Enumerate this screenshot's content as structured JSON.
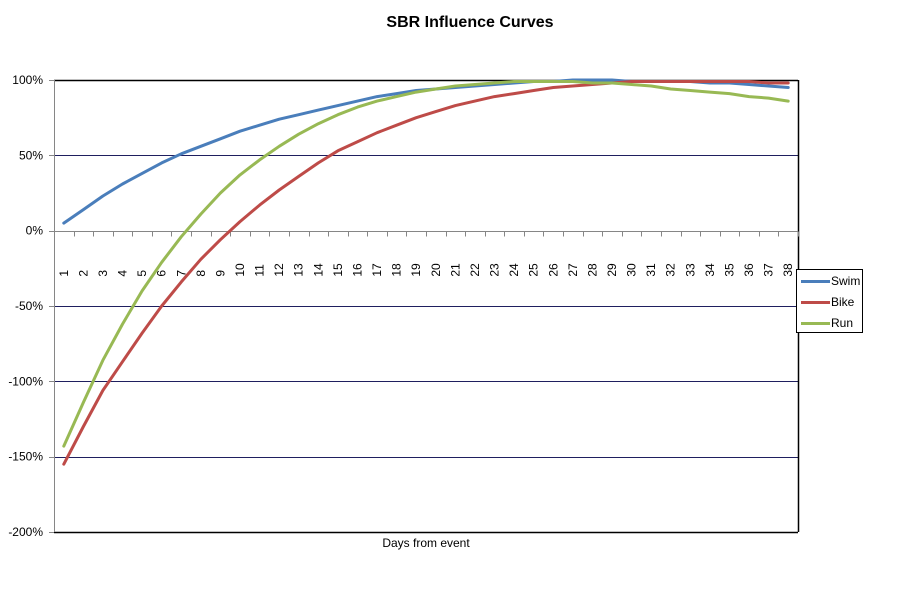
{
  "chart_data": {
    "type": "line",
    "title": "SBR Influence Curves",
    "xlabel": "Days from event",
    "ylabel": "",
    "ylim": [
      -2.0,
      1.0
    ],
    "y_ticks": [
      "100%",
      "50%",
      "0%",
      "-50%",
      "-100%",
      "-150%",
      "-200%"
    ],
    "y_tick_values": [
      1.0,
      0.5,
      0.0,
      -0.5,
      -1.0,
      -1.5,
      -2.0
    ],
    "grid": "horizontal major gridlines",
    "legend_position": "right",
    "categories": [
      "1",
      "2",
      "3",
      "4",
      "5",
      "6",
      "7",
      "8",
      "9",
      "10",
      "11",
      "12",
      "13",
      "14",
      "15",
      "16",
      "17",
      "18",
      "19",
      "20",
      "21",
      "22",
      "23",
      "24",
      "25",
      "26",
      "27",
      "28",
      "29",
      "30",
      "31",
      "32",
      "33",
      "34",
      "35",
      "36",
      "37",
      "38"
    ],
    "series": [
      {
        "name": "Swim",
        "color": "#4a7ebb",
        "values": [
          0.05,
          0.14,
          0.23,
          0.31,
          0.38,
          0.45,
          0.51,
          0.56,
          0.61,
          0.66,
          0.7,
          0.74,
          0.77,
          0.8,
          0.83,
          0.86,
          0.89,
          0.91,
          0.93,
          0.94,
          0.95,
          0.96,
          0.97,
          0.98,
          0.99,
          0.99,
          1.0,
          1.0,
          1.0,
          0.99,
          0.99,
          0.99,
          0.99,
          0.98,
          0.98,
          0.97,
          0.96,
          0.95
        ]
      },
      {
        "name": "Bike",
        "color": "#be4b48",
        "values": [
          -1.55,
          -1.3,
          -1.06,
          -0.87,
          -0.68,
          -0.5,
          -0.34,
          -0.19,
          -0.06,
          0.06,
          0.17,
          0.27,
          0.36,
          0.45,
          0.53,
          0.59,
          0.65,
          0.7,
          0.75,
          0.79,
          0.83,
          0.86,
          0.89,
          0.91,
          0.93,
          0.95,
          0.96,
          0.97,
          0.98,
          0.99,
          0.99,
          0.99,
          0.99,
          0.99,
          0.99,
          0.99,
          0.98,
          0.98
        ]
      },
      {
        "name": "Run",
        "color": "#98b954",
        "values": [
          -1.43,
          -1.14,
          -0.86,
          -0.62,
          -0.4,
          -0.21,
          -0.04,
          0.11,
          0.25,
          0.37,
          0.47,
          0.56,
          0.64,
          0.71,
          0.77,
          0.82,
          0.86,
          0.89,
          0.92,
          0.94,
          0.96,
          0.97,
          0.98,
          0.99,
          0.99,
          0.99,
          0.99,
          0.98,
          0.98,
          0.97,
          0.96,
          0.94,
          0.93,
          0.92,
          0.91,
          0.89,
          0.88,
          0.86
        ]
      }
    ]
  },
  "legend": {
    "items": [
      {
        "label": "Swim",
        "color": "#4a7ebb"
      },
      {
        "label": "Bike",
        "color": "#be4b48"
      },
      {
        "label": "Run",
        "color": "#98b954"
      }
    ]
  },
  "colors": {
    "gridline": "#1f1f5f",
    "axis": "#868686",
    "border": "#000000"
  }
}
